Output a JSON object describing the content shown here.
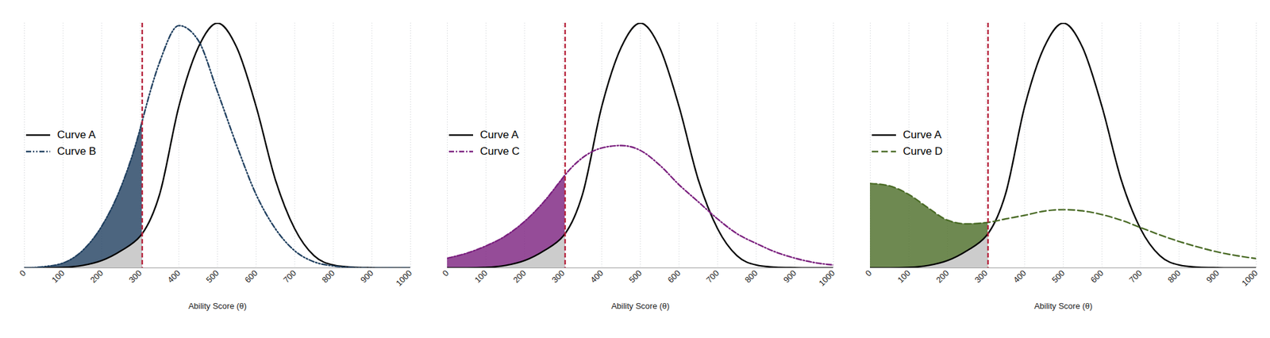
{
  "chart_data": [
    {
      "type": "line",
      "xlabel": "Ability Score (θ)",
      "x": [
        0,
        50,
        100,
        150,
        200,
        250,
        300,
        305,
        350,
        400,
        450,
        500,
        550,
        600,
        650,
        700,
        750,
        800,
        850,
        900,
        950,
        1000
      ],
      "series": [
        {
          "name": "Curve A",
          "color": "#000000",
          "line_style": "solid",
          "values": [
            0,
            0,
            0.002,
            0.01,
            0.03,
            0.07,
            0.13,
            0.14,
            0.3,
            0.66,
            0.9,
            1.0,
            0.9,
            0.66,
            0.36,
            0.16,
            0.05,
            0.012,
            0.003,
            0.001,
            0,
            0
          ]
        },
        {
          "name": "Curve B",
          "color": "#1f3f5f",
          "line_style": "dash-dot-dot",
          "values": [
            0,
            0.005,
            0.02,
            0.07,
            0.17,
            0.33,
            0.57,
            0.6,
            0.84,
            0.99,
            0.93,
            0.72,
            0.5,
            0.3,
            0.16,
            0.07,
            0.025,
            0.008,
            0.002,
            0,
            0,
            0
          ]
        }
      ],
      "cutoff": 305,
      "xlim": [
        0,
        1000
      ],
      "xticks": [
        0,
        100,
        200,
        300,
        400,
        500,
        600,
        700,
        800,
        900,
        1000
      ],
      "ylim": [
        0,
        1.0
      ],
      "grid": true,
      "tick_labels": "x",
      "legend": "left"
    },
    {
      "type": "line",
      "xlabel": "Ability Score (θ)",
      "x": [
        0,
        50,
        100,
        150,
        200,
        250,
        300,
        305,
        350,
        400,
        450,
        500,
        550,
        600,
        650,
        700,
        750,
        800,
        850,
        900,
        950,
        1000
      ],
      "series": [
        {
          "name": "Curve A",
          "color": "#000000",
          "line_style": "solid",
          "values": [
            0,
            0,
            0.002,
            0.01,
            0.03,
            0.07,
            0.13,
            0.14,
            0.3,
            0.66,
            0.9,
            1.0,
            0.9,
            0.66,
            0.36,
            0.16,
            0.05,
            0.012,
            0.003,
            0.001,
            0,
            0
          ]
        },
        {
          "name": "Curve C",
          "color": "#7a1f7e",
          "line_style": "dash-dot",
          "values": [
            0.04,
            0.06,
            0.09,
            0.13,
            0.19,
            0.27,
            0.37,
            0.38,
            0.45,
            0.49,
            0.5,
            0.48,
            0.42,
            0.34,
            0.27,
            0.2,
            0.14,
            0.1,
            0.065,
            0.04,
            0.022,
            0.012
          ]
        }
      ],
      "cutoff": 305,
      "xlim": [
        0,
        1000
      ],
      "xticks": [
        0,
        100,
        200,
        300,
        400,
        500,
        600,
        700,
        800,
        900,
        1000
      ],
      "ylim": [
        0,
        1.0
      ],
      "grid": true,
      "tick_labels": "x",
      "legend": "left"
    },
    {
      "type": "line",
      "xlabel": "Ability Score (θ)",
      "x": [
        0,
        50,
        100,
        150,
        200,
        250,
        300,
        305,
        350,
        400,
        450,
        500,
        550,
        600,
        650,
        700,
        750,
        800,
        850,
        900,
        950,
        1000
      ],
      "series": [
        {
          "name": "Curve A",
          "color": "#000000",
          "line_style": "solid",
          "values": [
            0,
            0,
            0.002,
            0.01,
            0.03,
            0.07,
            0.13,
            0.14,
            0.3,
            0.66,
            0.9,
            1.0,
            0.9,
            0.66,
            0.36,
            0.16,
            0.05,
            0.012,
            0.003,
            0.001,
            0,
            0
          ]
        },
        {
          "name": "Curve D",
          "color": "#4a6b26",
          "line_style": "dashed",
          "values": [
            0.345,
            0.335,
            0.3,
            0.245,
            0.195,
            0.18,
            0.185,
            0.186,
            0.2,
            0.215,
            0.232,
            0.238,
            0.233,
            0.218,
            0.195,
            0.165,
            0.135,
            0.108,
            0.085,
            0.065,
            0.05,
            0.038
          ]
        }
      ],
      "cutoff": 305,
      "xlim": [
        0,
        1000
      ],
      "xticks": [
        0,
        100,
        200,
        300,
        400,
        500,
        600,
        700,
        800,
        900,
        1000
      ],
      "ylim": [
        0,
        1.0
      ],
      "grid": true,
      "tick_labels": "x",
      "legend": "left"
    }
  ]
}
